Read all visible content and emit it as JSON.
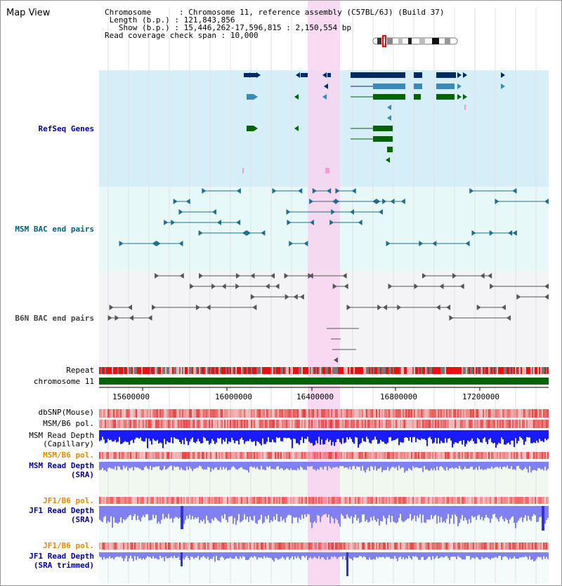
{
  "title": "Map View",
  "info": {
    "chromosome_label": "Chromosome",
    "chromosome_value": "Chromosome 11, reference assembly (C57BL/6J) (Build 37)",
    "length_label": "Length (b.p.)",
    "length_value": "121,843,856",
    "show_label": "Show (b.p.)",
    "show_value": "15,446,262-17,596,815 : 2,150,554 bp",
    "coverage_label": "Read coverage check span",
    "coverage_value": "10,000"
  },
  "tracks": {
    "refseq": "RefSeq Genes",
    "msm_bac": "MSM BAC end pairs",
    "b6n_bac": "B6N BAC end pairs",
    "repeat": "Repeat",
    "chromosome": "chromosome 11",
    "dbsnp": "dbSNP(Mouse)",
    "msm_b6_pol": "MSM/B6 pol.",
    "msm_read_depth_cap_1": "MSM Read Depth",
    "msm_read_depth_cap_2": "(Capillary)",
    "msm_b6_pol_2": "MSM/B6 pol.",
    "msm_read_depth_sra_1": "MSM Read Depth",
    "msm_read_depth_sra_2": "(SRA)",
    "jf1_b6_pol": "JF1/B6 pol.",
    "jf1_read_depth_1": "JF1 Read Depth",
    "jf1_read_depth_2": "(SRA)",
    "jf1_b6_pol_2": "JF1/B6 pol.",
    "jf1_trim_1": "JF1 Read Depth",
    "jf1_trim_2": "(SRA trimmed)"
  },
  "axis_ticks": [
    "15600000",
    "16000000",
    "16400000",
    "16800000",
    "17200000"
  ],
  "colors": {
    "refseq_bg": "#d6eef8",
    "msm_bg": "#e6f8f8",
    "b6n_bg": "#f4f4f6",
    "highlight": "#f7d4f0",
    "chromosome": "#006400",
    "depth_blue": "#1a1aff",
    "depth_light": "#8080f0",
    "snp_red": "#f08080"
  }
}
